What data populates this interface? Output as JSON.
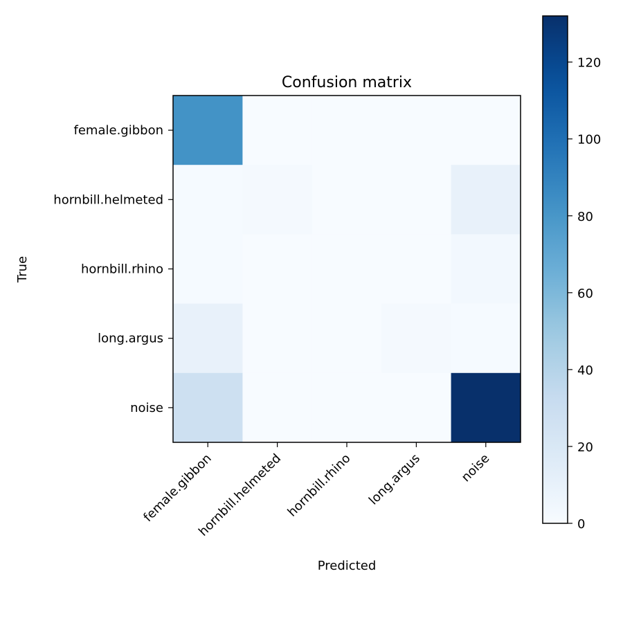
{
  "chart_data": {
    "type": "heatmap",
    "title": "Confusion matrix",
    "xlabel": "Predicted",
    "ylabel": "True",
    "x_categories": [
      "female.gibbon",
      "hornbill.helmeted",
      "hornbill.rhino",
      "long.argus",
      "noise"
    ],
    "y_categories": [
      "female.gibbon",
      "hornbill.helmeted",
      "hornbill.rhino",
      "long.argus",
      "noise"
    ],
    "values": [
      [
        82,
        0,
        0,
        0,
        0
      ],
      [
        1,
        2,
        0,
        0,
        10
      ],
      [
        1,
        0,
        0,
        0,
        3
      ],
      [
        10,
        0,
        0,
        2,
        1
      ],
      [
        28,
        0,
        0,
        0,
        132
      ]
    ],
    "colormap": "Blues",
    "colorbar": {
      "range": [
        0,
        132
      ],
      "ticks": [
        0,
        20,
        40,
        60,
        80,
        100,
        120
      ]
    },
    "grid": false,
    "legend": "none"
  }
}
